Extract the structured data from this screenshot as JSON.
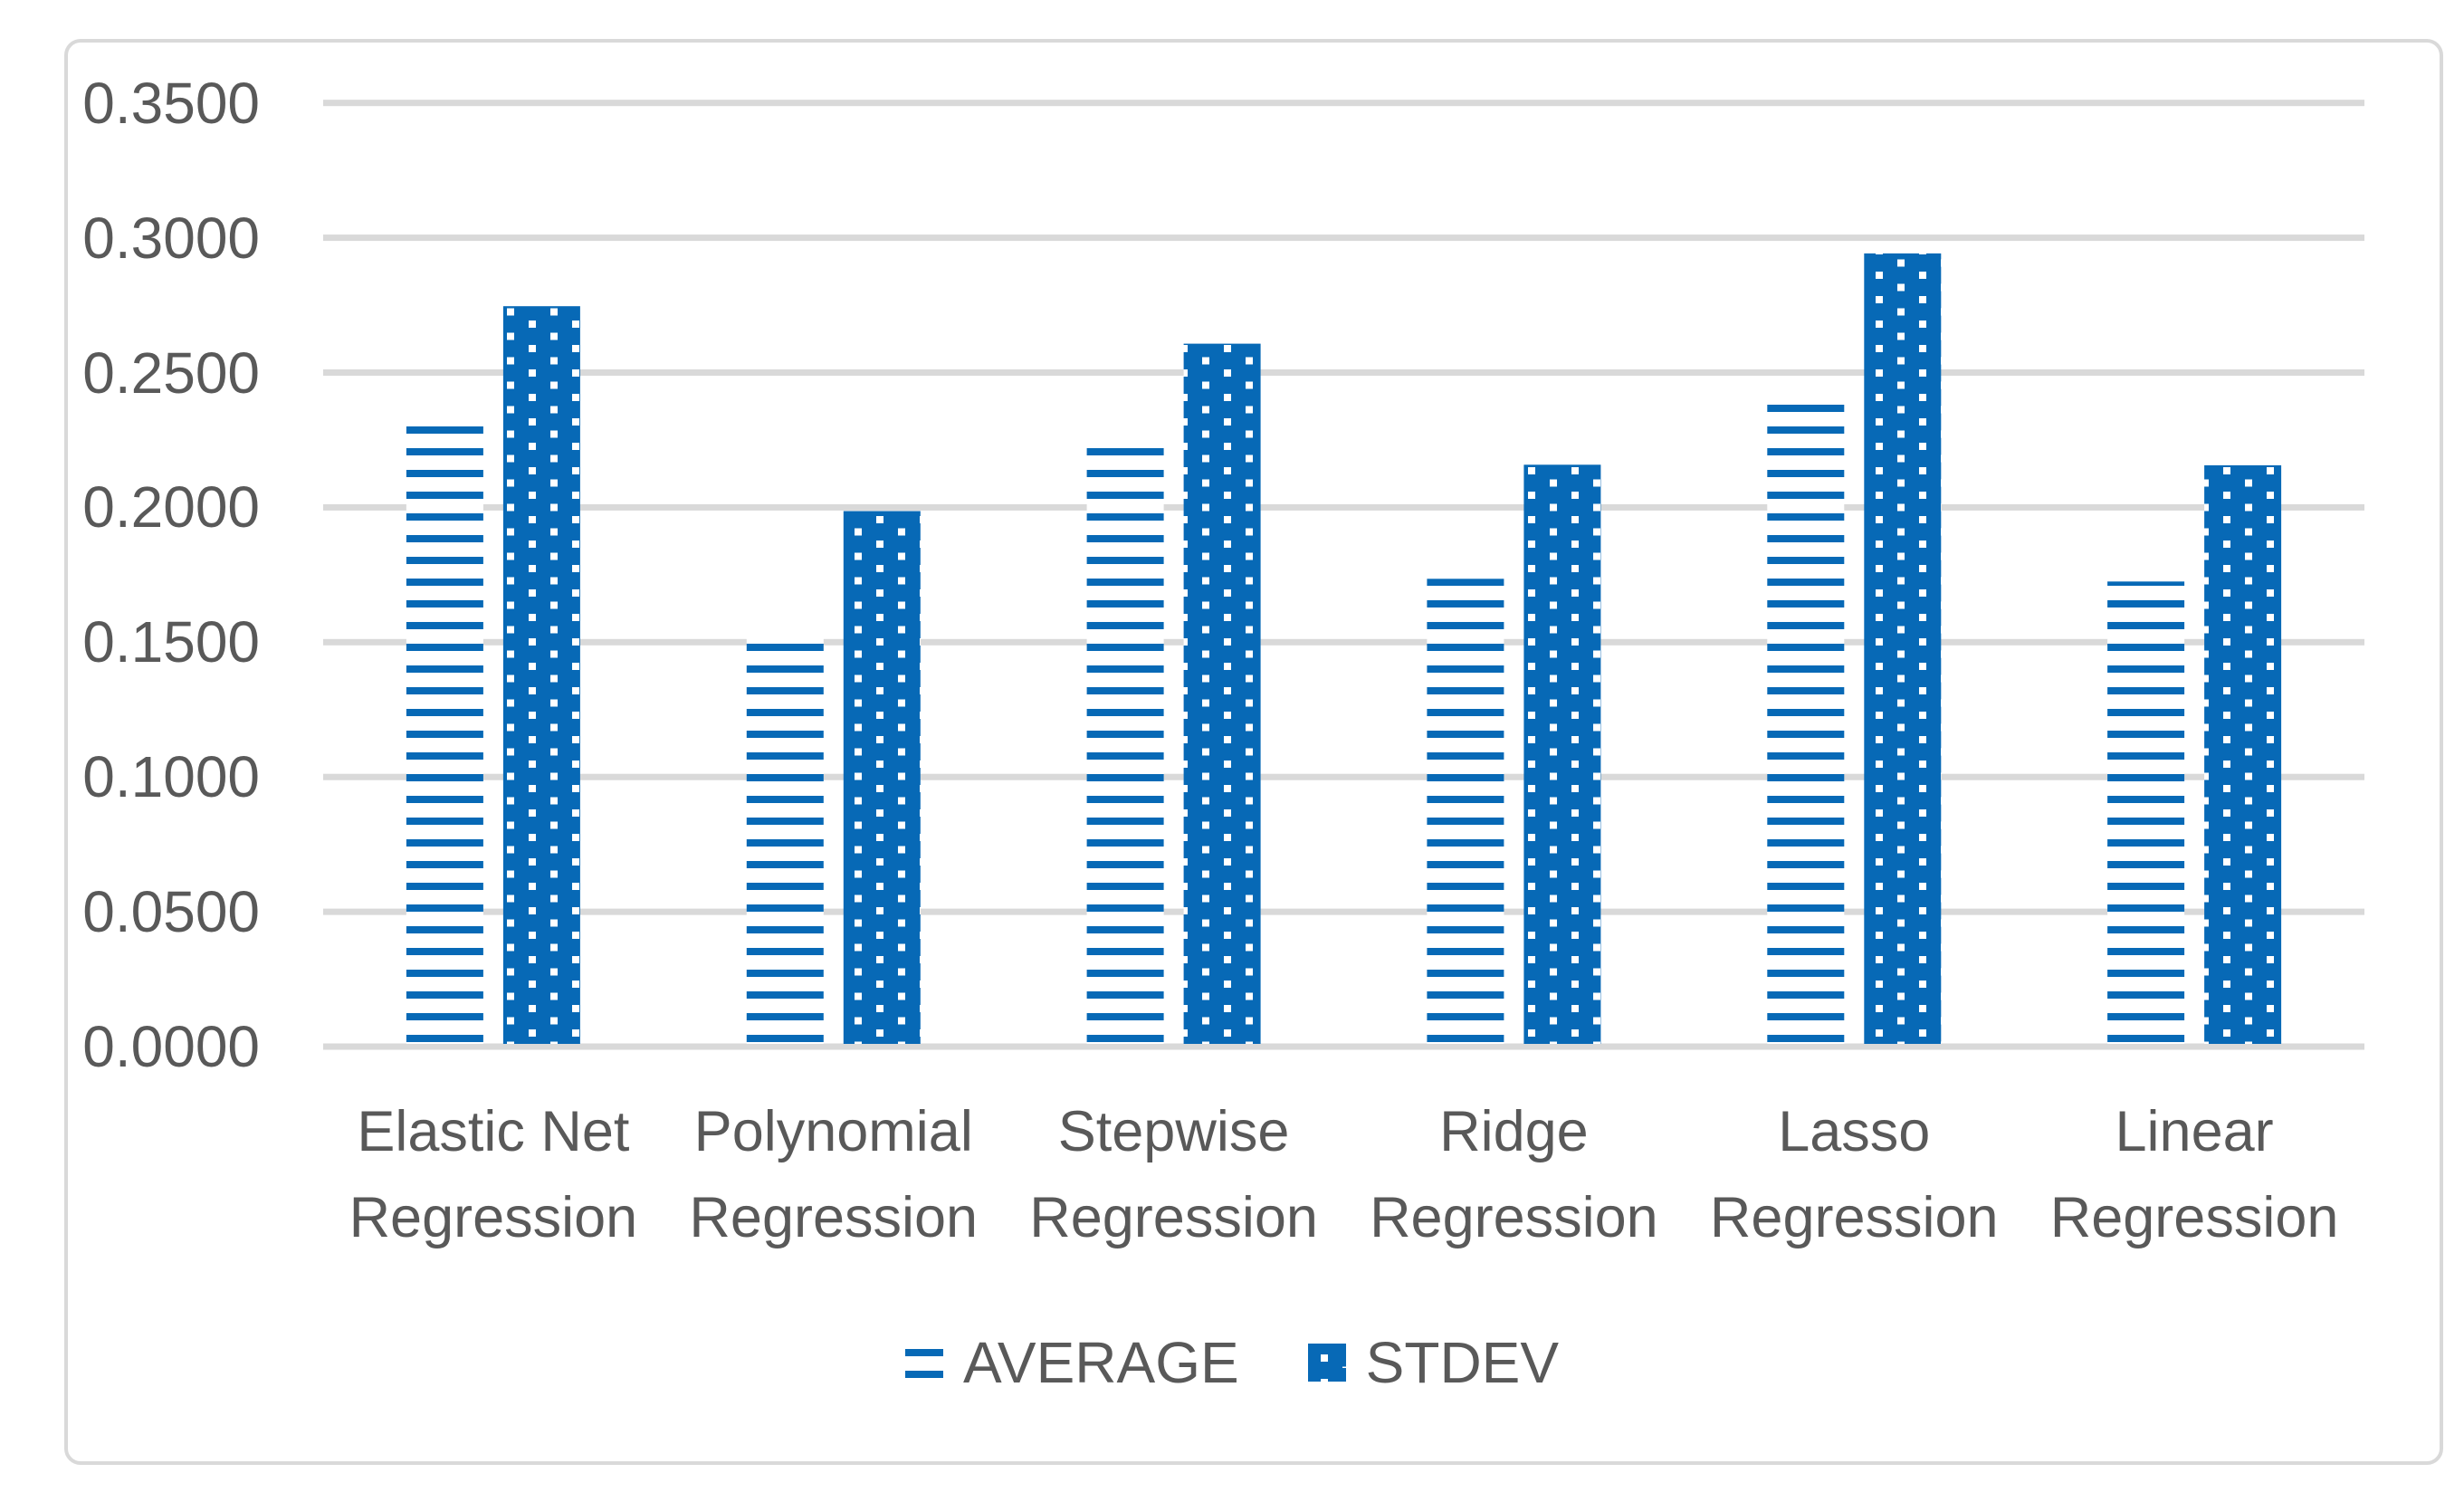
{
  "chart_data": {
    "type": "bar",
    "title": "",
    "categories": [
      "Elastic Net Regression",
      "Polynomial Regression",
      "Stepwise Regression",
      "Ridge Regression",
      "Lasso Regression",
      "Linear Regression"
    ],
    "categories_lines": [
      [
        "Elastic Net",
        "Regression"
      ],
      [
        "Polynomial",
        "Regression"
      ],
      [
        "Stepwise",
        "Regression"
      ],
      [
        "Ridge",
        "Regression"
      ],
      [
        "Lasso",
        "Regression"
      ],
      [
        "Linear",
        "Regression"
      ]
    ],
    "series": [
      {
        "name": "AVERAGE",
        "pattern": "horizontal-stripes",
        "values": [
          0.232,
          0.152,
          0.222,
          0.1725,
          0.2395,
          0.1715
        ]
      },
      {
        "name": "STDEV",
        "pattern": "dots",
        "values": [
          0.2736,
          0.1976,
          0.2597,
          0.2148,
          0.2932,
          0.2146
        ]
      }
    ],
    "xlabel": "",
    "ylabel": "",
    "ylim": [
      0,
      0.35
    ],
    "ytick_step": 0.05,
    "ytick_labels": [
      "0.3500",
      "0.3000",
      "0.2500",
      "0.2000",
      "0.1500",
      "0.1000",
      "0.0500",
      "0.0000"
    ],
    "grid": true,
    "legend_position": "bottom-center",
    "colors": {
      "bar_blue": "#0769B6",
      "gridline": "#D9D9D9",
      "frame_border": "#D9D9D9",
      "text": "#595959",
      "background": "#FFFFFF"
    }
  }
}
